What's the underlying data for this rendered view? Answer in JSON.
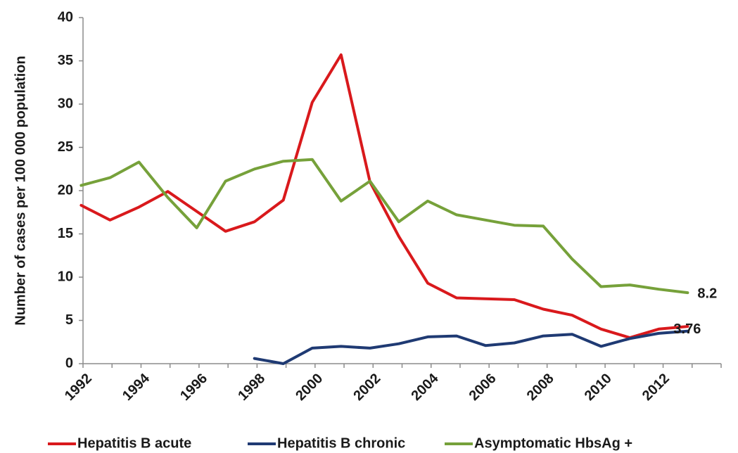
{
  "chart_data": {
    "type": "line",
    "title": "",
    "xlabel": "",
    "ylabel": "Number of cases per 100 000 population",
    "ylim": [
      0,
      40
    ],
    "yticks": [
      "0",
      "5",
      "10",
      "15",
      "20",
      "25",
      "30",
      "35",
      "40"
    ],
    "xtick_labels": [
      "1992",
      "1994",
      "1996",
      "1998",
      "2000",
      "2002",
      "2004",
      "2006",
      "2008",
      "2010",
      "2012"
    ],
    "grid": false,
    "legend_position": "bottom",
    "series": [
      {
        "name": "Hepatitis B acute",
        "color": "#d9191c",
        "x": [
          1992,
          1993,
          1994,
          1995,
          1996,
          1997,
          1998,
          1999,
          2000,
          2001,
          2002,
          2003,
          2004,
          2005,
          2006,
          2007,
          2008,
          2009,
          2010,
          2011,
          2012,
          2013
        ],
        "values": [
          18.3,
          16.6,
          18.1,
          19.9,
          17.6,
          15.3,
          16.4,
          18.9,
          30.2,
          35.7,
          21.0,
          14.7,
          9.3,
          7.6,
          7.5,
          7.4,
          6.3,
          5.6,
          4.0,
          3.0,
          4.0,
          4.3
        ]
      },
      {
        "name": "Hepatitis B chronic",
        "color": "#1f3a73",
        "x": [
          1998,
          1999,
          2000,
          2001,
          2002,
          2003,
          2004,
          2005,
          2006,
          2007,
          2008,
          2009,
          2010,
          2011,
          2012,
          2013
        ],
        "values": [
          0.6,
          0.0,
          1.8,
          2.0,
          1.8,
          2.3,
          3.1,
          3.2,
          2.1,
          2.4,
          3.2,
          3.4,
          2.0,
          2.9,
          3.5,
          3.76
        ]
      },
      {
        "name": "Asymptomatic HbsAg +",
        "color": "#76a13a",
        "x": [
          1992,
          1993,
          1994,
          1995,
          1996,
          1997,
          1998,
          1999,
          2000,
          2001,
          2002,
          2003,
          2004,
          2005,
          2006,
          2007,
          2008,
          2009,
          2010,
          2011,
          2012,
          2013
        ],
        "values": [
          20.6,
          21.5,
          23.3,
          19.2,
          15.7,
          21.1,
          22.5,
          23.4,
          23.6,
          18.8,
          21.1,
          16.4,
          18.8,
          17.2,
          16.6,
          16.0,
          15.9,
          12.1,
          8.9,
          9.1,
          8.6,
          8.2
        ]
      }
    ],
    "annotations": [
      {
        "text": "8.2",
        "series": "Asymptomatic HbsAg +",
        "x": 2013,
        "y": 8.2
      },
      {
        "text": "3.76",
        "series": "Hepatitis B chronic",
        "x": 2013,
        "y": 3.76
      }
    ]
  }
}
